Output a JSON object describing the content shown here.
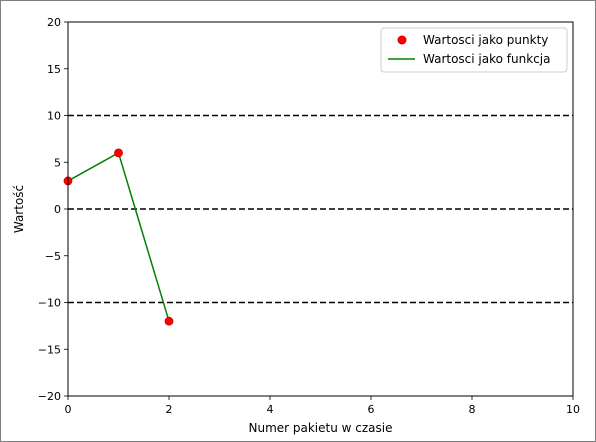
{
  "chart_data": {
    "type": "line",
    "title": "",
    "xlabel": "Numer pakietu w czasie",
    "ylabel": "Wartość",
    "xlim": [
      0,
      10
    ],
    "ylim": [
      -20,
      20
    ],
    "xticks": [
      "0",
      "2",
      "4",
      "6",
      "8",
      "10"
    ],
    "xtick_values": [
      0,
      2,
      4,
      6,
      8,
      10
    ],
    "yticks": [
      "−20",
      "−15",
      "−10",
      "−5",
      "0",
      "5",
      "10",
      "15",
      "20"
    ],
    "ytick_values": [
      -20,
      -15,
      -10,
      -5,
      0,
      5,
      10,
      15,
      20
    ],
    "grid": false,
    "legend_position": "top-right",
    "series": [
      {
        "name": "Wartosci jako punkty",
        "style": "markers",
        "color": "#ff0000",
        "edge_color": "#cc0000",
        "x": [
          0,
          1,
          2
        ],
        "y": [
          3,
          6,
          -12
        ]
      },
      {
        "name": "Wartosci jako funkcja",
        "style": "line",
        "color": "#008000",
        "x": [
          0,
          1,
          2
        ],
        "y": [
          3,
          6,
          -12
        ]
      }
    ],
    "reference_lines": [
      {
        "y": 10,
        "style": "dashed",
        "color": "#000000"
      },
      {
        "y": 0,
        "style": "dashed",
        "color": "#000000"
      },
      {
        "y": -10,
        "style": "dashed",
        "color": "#000000"
      }
    ]
  }
}
